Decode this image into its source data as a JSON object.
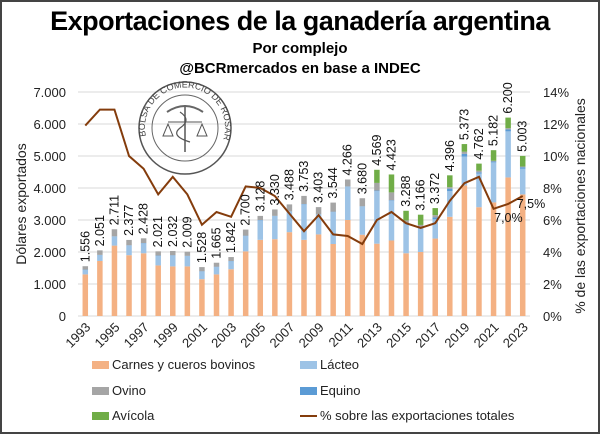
{
  "chart_data": {
    "type": "bar",
    "stacked": true,
    "title": "Exportaciones de la ganadería argentina",
    "subtitle": "Por complejo",
    "source": "@BCRmercados en base a INDEC",
    "watermark": "BOLSA DE COMERCIO DE ROSARIO",
    "ylabel": "Dólares exportados",
    "y2label": "% de las exportaciones nacionales",
    "ylim": [
      0,
      7000
    ],
    "y2lim": [
      0,
      14
    ],
    "yticks": [
      "0",
      "1.000",
      "2.000",
      "3.000",
      "4.000",
      "5.000",
      "6.000",
      "7.000"
    ],
    "y2ticks": [
      "0%",
      "2%",
      "4%",
      "6%",
      "8%",
      "10%",
      "12%",
      "14%"
    ],
    "xtick_labels": [
      "1993",
      "1995",
      "1997",
      "1999",
      "2001",
      "2003",
      "2005",
      "2007",
      "2009",
      "2011",
      "2013",
      "2015",
      "2017",
      "2019",
      "2021",
      "2023"
    ],
    "grid": true,
    "legend_position": "bottom",
    "categories": [
      "1993",
      "1994",
      "1995",
      "1996",
      "1997",
      "1998",
      "1999",
      "2000",
      "2001",
      "2002",
      "2003",
      "2004",
      "2005",
      "2006",
      "2007",
      "2008",
      "2009",
      "2010",
      "2011",
      "2012",
      "2013",
      "2014",
      "2015",
      "2016",
      "2017",
      "2018",
      "2019",
      "2020",
      "2021",
      "2022",
      "2023"
    ],
    "totals": [
      1556,
      2051,
      2711,
      2377,
      2428,
      2021,
      2032,
      2009,
      1528,
      1665,
      1842,
      2700,
      3128,
      3330,
      3488,
      3753,
      3403,
      3544,
      4266,
      3680,
      4569,
      4423,
      3288,
      3166,
      3372,
      4396,
      5373,
      4762,
      5182,
      6200,
      5003
    ],
    "total_labels": [
      "1.556",
      "2.051",
      "2.711",
      "2.377",
      "2.428",
      "2.021",
      "2.032",
      "2.009",
      "1.528",
      "1.665",
      "1.842",
      "2.700",
      "3.128",
      "3.330",
      "3.488",
      "3.753",
      "3.403",
      "3.544",
      "4.266",
      "3.680",
      "4.569",
      "4.423",
      "3.288",
      "3.166",
      "3.372",
      "4.396",
      "5.373",
      "4.762",
      "5.182",
      "6.200",
      "5.003"
    ],
    "series": [
      {
        "name": "Carnes y cueros bovinos",
        "color": "#f4b183",
        "type": "bar",
        "values": [
          1300,
          1720,
          2200,
          1900,
          1960,
          1580,
          1550,
          1550,
          1150,
          1300,
          1460,
          2020,
          2380,
          2400,
          2620,
          2380,
          2550,
          2250,
          3000,
          2540,
          2260,
          2360,
          1960,
          2000,
          2420,
          3100,
          4080,
          3400,
          3550,
          4330,
          3800
        ]
      },
      {
        "name": "Lácteo",
        "color": "#9dc3e6",
        "type": "bar",
        "values": [
          140,
          180,
          280,
          300,
          310,
          300,
          340,
          320,
          240,
          230,
          250,
          480,
          610,
          720,
          640,
          1110,
          620,
          1000,
          1040,
          880,
          1640,
          1240,
          920,
          760,
          600,
          800,
          900,
          1050,
          1250,
          1440,
          800
        ]
      },
      {
        "name": "Equino",
        "color": "#5b9bd5",
        "type": "bar",
        "values": [
          10,
          10,
          10,
          10,
          10,
          10,
          10,
          10,
          10,
          10,
          10,
          10,
          10,
          10,
          10,
          10,
          10,
          10,
          10,
          10,
          20,
          20,
          20,
          20,
          60,
          80,
          90,
          40,
          30,
          60,
          50
        ]
      },
      {
        "name": "Ovino",
        "color": "#a5a5a5",
        "type": "bar",
        "values": [
          106,
          141,
          221,
          167,
          148,
          131,
          132,
          129,
          128,
          125,
          122,
          190,
          128,
          200,
          218,
          253,
          223,
          284,
          216,
          250,
          239,
          243,
          88,
          66,
          72,
          46,
          63,
          52,
          22,
          40,
          23
        ]
      },
      {
        "name": "Avícola",
        "color": "#70ad47",
        "type": "bar",
        "values": [
          0,
          0,
          0,
          0,
          0,
          0,
          0,
          0,
          0,
          0,
          0,
          0,
          0,
          0,
          0,
          0,
          0,
          0,
          0,
          0,
          410,
          560,
          300,
          320,
          220,
          370,
          240,
          220,
          330,
          330,
          330
        ]
      },
      {
        "name": "% sobre las exportaciones totales",
        "color": "#843c0c",
        "type": "line",
        "axis": "secondary",
        "values": [
          11.9,
          12.9,
          12.9,
          10.0,
          9.2,
          7.6,
          8.7,
          7.6,
          5.7,
          6.5,
          6.2,
          8.1,
          8.0,
          7.5,
          6.4,
          5.3,
          6.3,
          5.1,
          5.0,
          4.5,
          6.0,
          6.5,
          5.8,
          5.5,
          5.8,
          7.2,
          8.3,
          8.7,
          6.7,
          7.0,
          7.5
        ]
      }
    ],
    "annotations": [
      {
        "category": "2022",
        "text": "7,0%"
      },
      {
        "category": "2023",
        "text": "7,5%"
      }
    ]
  },
  "legend": [
    {
      "label": "Carnes y cueros bovinos",
      "color": "#f4b183",
      "kind": "box"
    },
    {
      "label": "Lácteo",
      "color": "#9dc3e6",
      "kind": "box"
    },
    {
      "label": "Ovino",
      "color": "#a5a5a5",
      "kind": "box"
    },
    {
      "label": "Equino",
      "color": "#5b9bd5",
      "kind": "box"
    },
    {
      "label": "Avícola",
      "color": "#70ad47",
      "kind": "box"
    },
    {
      "label": "% sobre las exportaciones totales",
      "color": "#843c0c",
      "kind": "line"
    }
  ]
}
